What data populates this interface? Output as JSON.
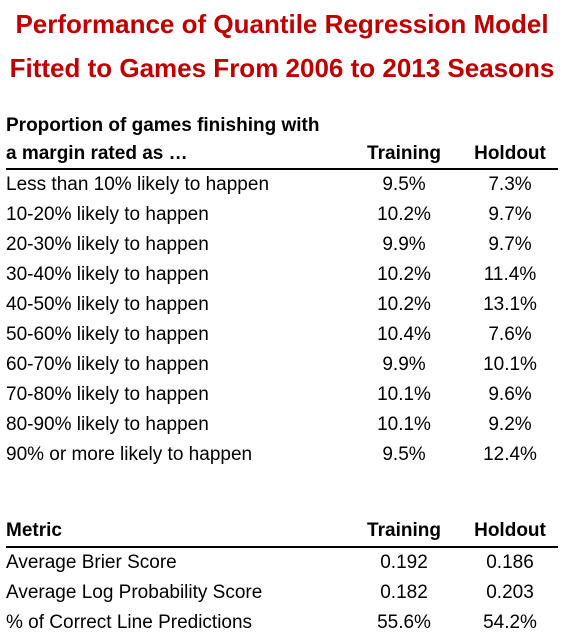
{
  "title": {
    "line1": "Performance of Quantile Regression Model",
    "line2": "Fitted to Games From 2006 to 2013 Seasons"
  },
  "accent_color": "#c00000",
  "table1": {
    "header_line1": "Proportion of games finishing with",
    "header_line2": "a margin rated as …",
    "col_training": "Training",
    "col_holdout": "Holdout",
    "rows": [
      {
        "label": "Less than 10% likely to happen",
        "training": "9.5%",
        "holdout": "7.3%"
      },
      {
        "label": "10-20% likely to happen",
        "training": "10.2%",
        "holdout": "9.7%"
      },
      {
        "label": "20-30% likely to happen",
        "training": "9.9%",
        "holdout": "9.7%"
      },
      {
        "label": "30-40% likely to happen",
        "training": "10.2%",
        "holdout": "11.4%"
      },
      {
        "label": "40-50% likely to happen",
        "training": "10.2%",
        "holdout": "13.1%"
      },
      {
        "label": "50-60% likely to happen",
        "training": "10.4%",
        "holdout": "7.6%"
      },
      {
        "label": "60-70% likely to happen",
        "training": "9.9%",
        "holdout": "10.1%"
      },
      {
        "label": "70-80% likely to happen",
        "training": "10.1%",
        "holdout": "9.6%"
      },
      {
        "label": "80-90% likely to happen",
        "training": "10.1%",
        "holdout": "9.2%"
      },
      {
        "label": "90% or more likely to happen",
        "training": "9.5%",
        "holdout": "12.4%"
      }
    ]
  },
  "table2": {
    "col_metric": "Metric",
    "col_training": "Training",
    "col_holdout": "Holdout",
    "rows": [
      {
        "label": "Average Brier Score",
        "training": "0.192",
        "holdout": "0.186"
      },
      {
        "label": "Average Log Probability Score",
        "training": "0.182",
        "holdout": "0.203"
      },
      {
        "label": "% of Correct Line Predictions",
        "training": "55.6%",
        "holdout": "54.2%"
      }
    ]
  }
}
